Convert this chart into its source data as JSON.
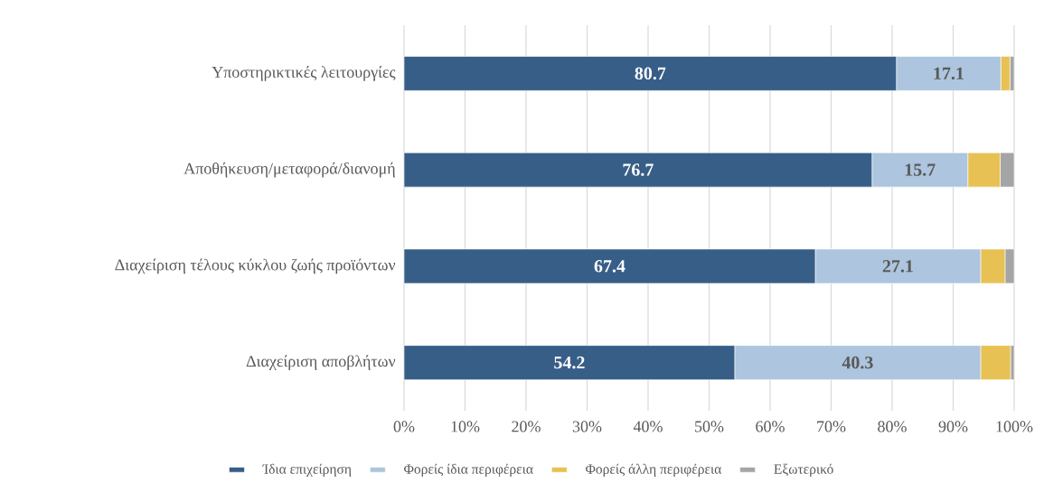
{
  "chart_data": {
    "type": "bar",
    "orientation": "horizontal",
    "stacked": true,
    "categories": [
      "Υποστηρικτικές λειτουργίες",
      "Αποθήκευση/μεταφορά/διανομή",
      "Διαχείριση τέλους κύκλου ζωής προϊόντων",
      "Διαχείριση αποβλήτων"
    ],
    "series": [
      {
        "name": "Ίδια επιχείρηση",
        "color": "#375e87",
        "values": [
          80.7,
          76.7,
          67.4,
          54.2
        ],
        "value_labels": [
          "80.7",
          "76.7",
          "67.4",
          "54.2"
        ]
      },
      {
        "name": "Φορείς ίδια περιφέρεια",
        "color": "#adc5de",
        "values": [
          17.1,
          15.7,
          27.1,
          40.3
        ],
        "value_labels": [
          "17.1",
          "15.7",
          "27.1",
          "40.3"
        ]
      },
      {
        "name": "Φορείς άλλη περιφέρεια",
        "color": "#e7c153",
        "values": [
          1.5,
          5.3,
          4.0,
          4.9
        ]
      },
      {
        "name": "Εξωτερικό",
        "color": "#a5a5a5",
        "values": [
          0.7,
          2.3,
          1.5,
          0.6
        ]
      }
    ],
    "xlim": [
      0,
      100
    ],
    "xticks": [
      {
        "value": 0,
        "label": "0%"
      },
      {
        "value": 10,
        "label": "10%"
      },
      {
        "value": 20,
        "label": "20%"
      },
      {
        "value": 30,
        "label": "30%"
      },
      {
        "value": 40,
        "label": "40%"
      },
      {
        "value": 50,
        "label": "50%"
      },
      {
        "value": 60,
        "label": "60%"
      },
      {
        "value": 70,
        "label": "70%"
      },
      {
        "value": 80,
        "label": "80%"
      },
      {
        "value": 90,
        "label": "90%"
      },
      {
        "value": 100,
        "label": "100%"
      }
    ],
    "grid": "x",
    "legend": "bottom"
  }
}
